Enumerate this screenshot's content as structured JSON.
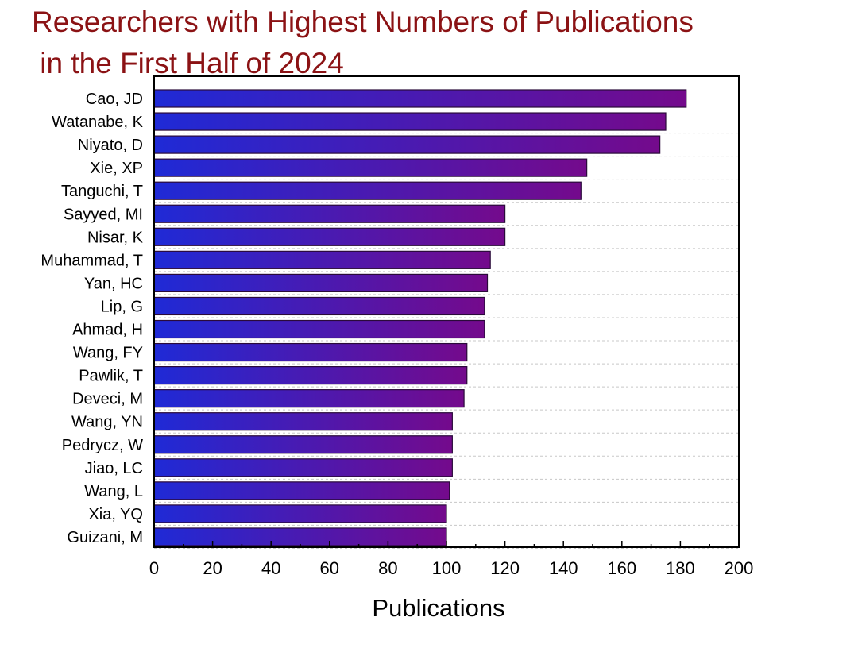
{
  "title": {
    "line1": "Researchers with Highest Numbers of Publications",
    "line2": " in the First Half of 2024"
  },
  "colors": {
    "title": "#8b1214",
    "bar_start": "#1f2ad6",
    "bar_end": "#740a8c",
    "bar_edge": "#2a0a3a"
  },
  "chart_data": {
    "type": "bar",
    "orientation": "horizontal",
    "title": "Researchers with Highest Numbers of Publications in the First Half of 2024",
    "xlabel": "Publications",
    "ylabel": "",
    "xlim": [
      0,
      200
    ],
    "xticks": [
      0,
      20,
      40,
      60,
      80,
      100,
      120,
      140,
      160,
      180,
      200
    ],
    "grid": "horizontal dashed",
    "categories": [
      "Cao, JD",
      "Watanabe, K",
      "Niyato, D",
      "Xie, XP",
      "Tanguchi, T",
      "Sayyed, MI",
      "Nisar, K",
      "Muhammad, T",
      "Yan, HC",
      "Lip, G",
      "Ahmad, H",
      "Wang, FY",
      "Pawlik, T",
      "Deveci, M",
      "Wang, YN",
      "Pedrycz, W",
      "Jiao, LC",
      "Wang, L",
      "Xia, YQ",
      "Guizani, M"
    ],
    "values": [
      182,
      175,
      173,
      148,
      146,
      120,
      120,
      115,
      114,
      113,
      113,
      107,
      107,
      106,
      102,
      102,
      102,
      101,
      100,
      100
    ]
  }
}
